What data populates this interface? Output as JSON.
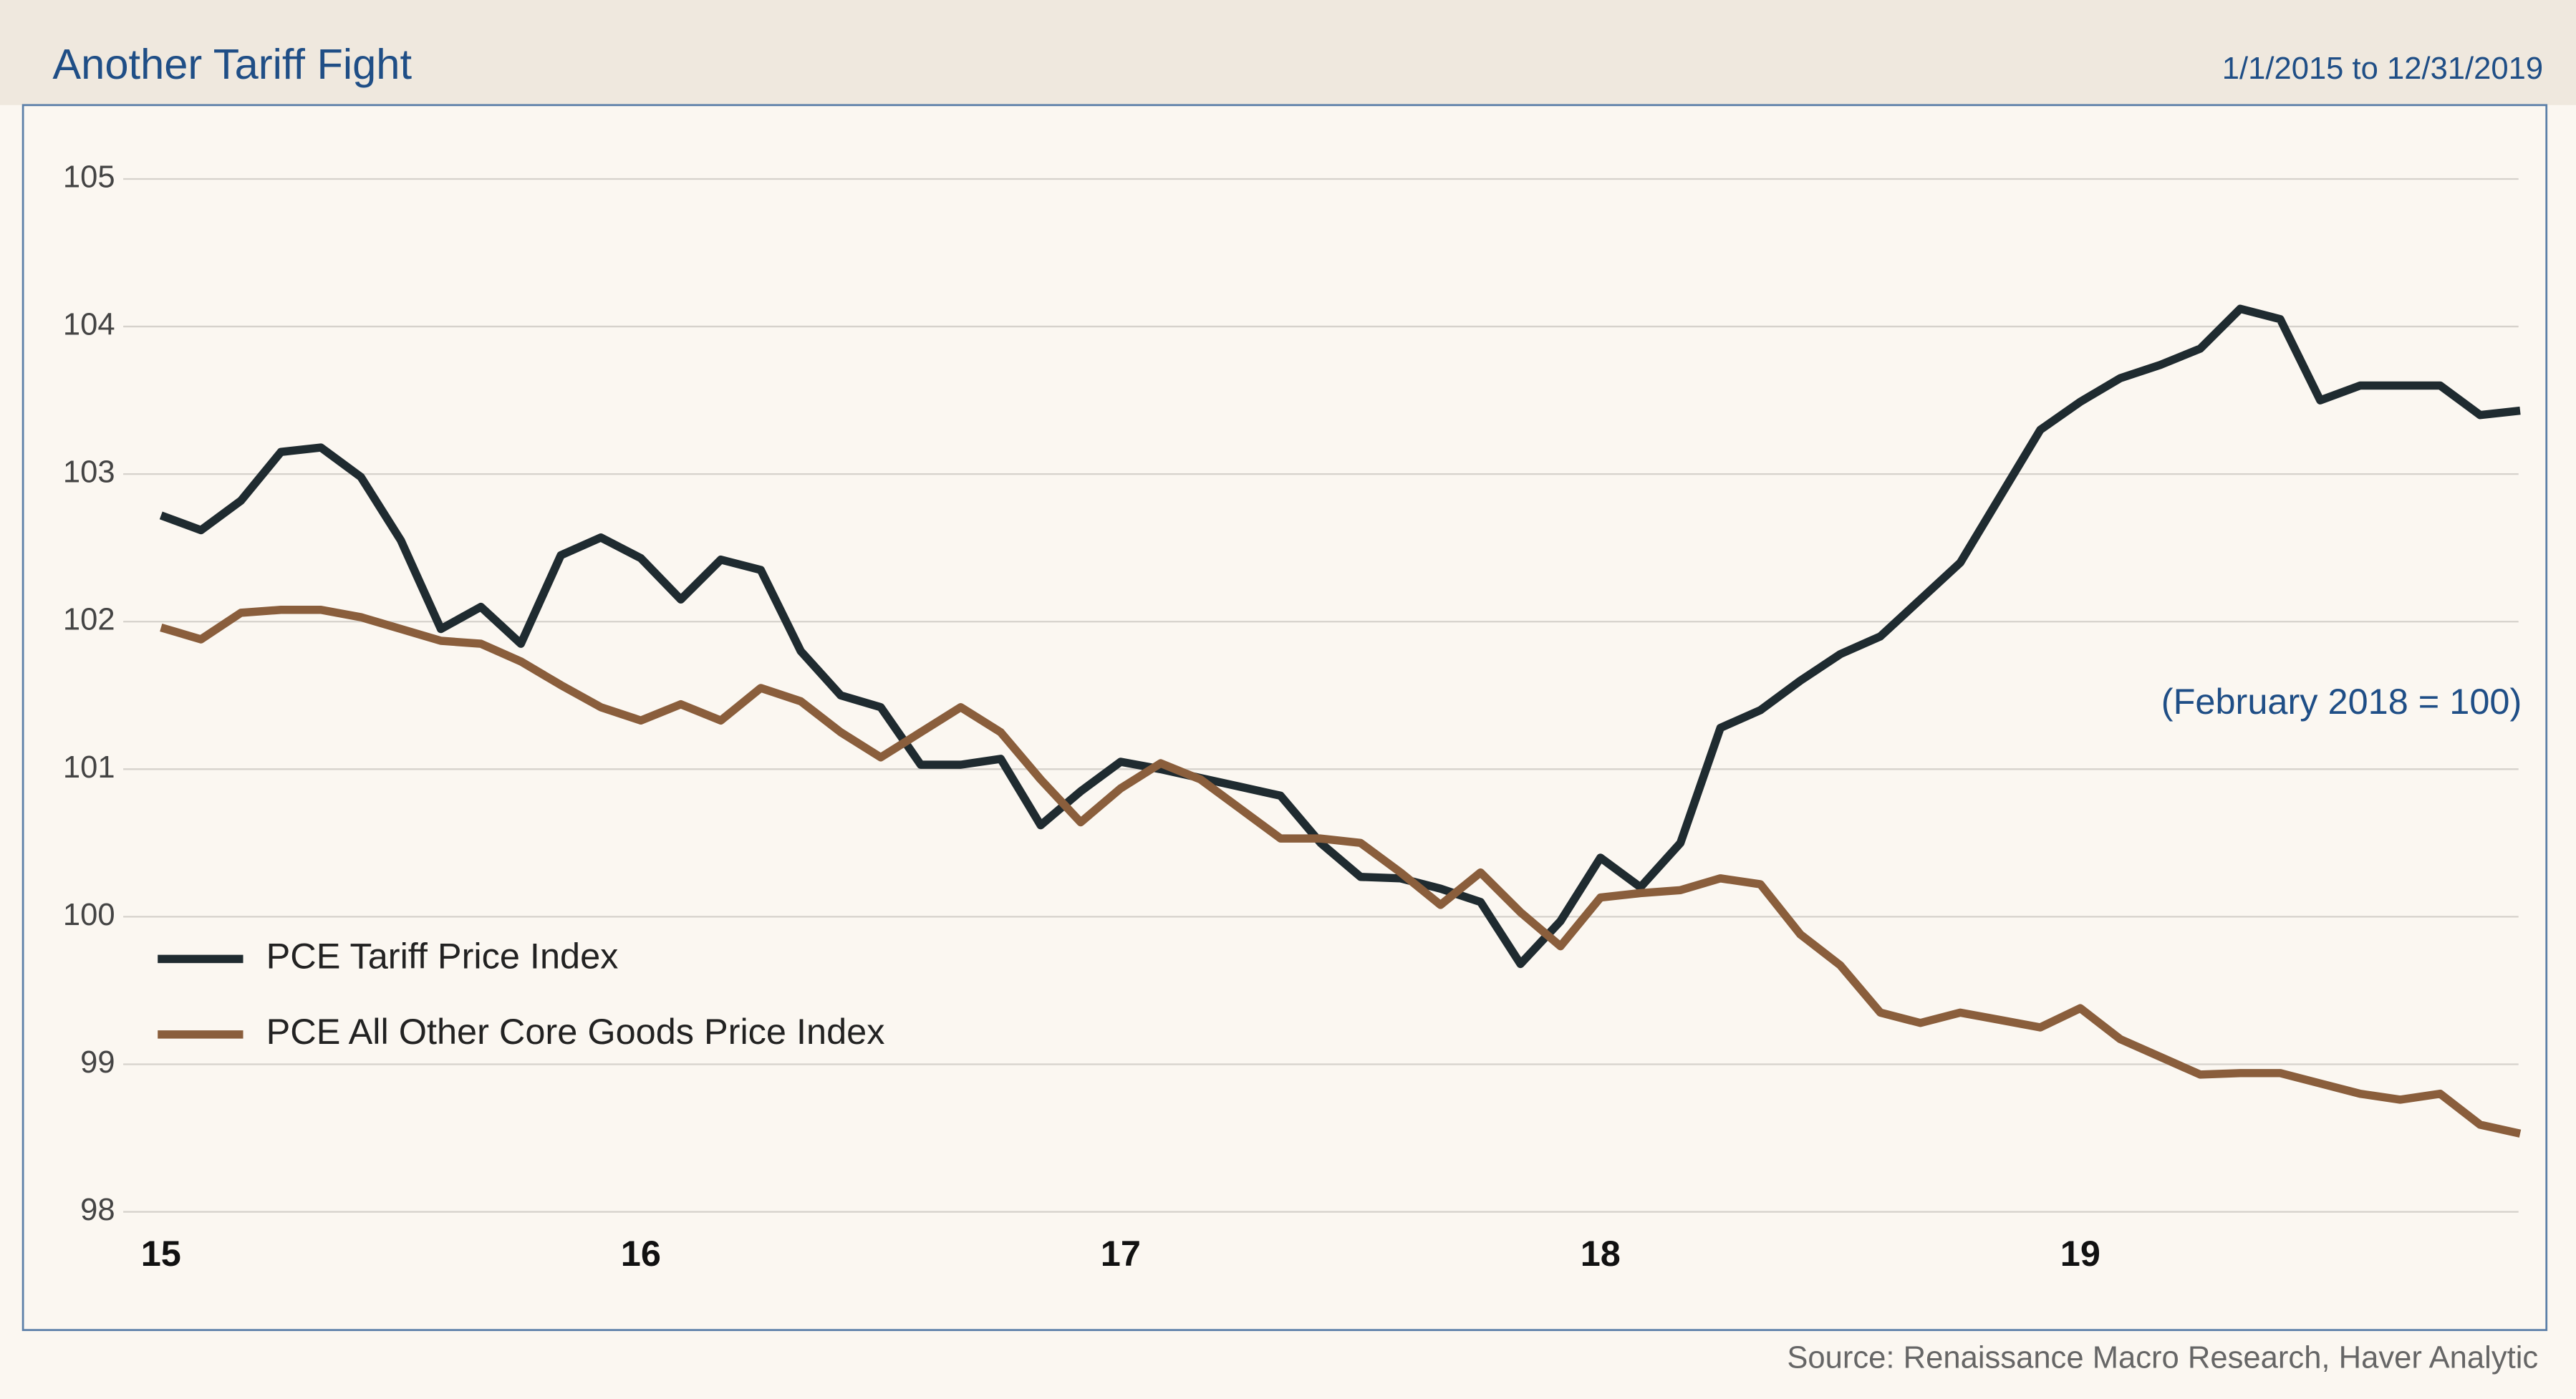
{
  "chart_data": {
    "type": "line",
    "title": "Another Tariff Fight",
    "subtitle": "1/1/2015 to 12/31/2019",
    "annotation": "(February 2018 = 100)",
    "source": "Source: Renaissance Macro Research, Haver Analytic",
    "categories": [
      "15",
      null,
      null,
      null,
      null,
      null,
      null,
      null,
      null,
      null,
      null,
      null,
      "16",
      null,
      null,
      null,
      null,
      null,
      null,
      null,
      null,
      null,
      null,
      null,
      "17",
      null,
      null,
      null,
      null,
      null,
      null,
      null,
      null,
      null,
      null,
      null,
      "18",
      null,
      null,
      null,
      null,
      null,
      null,
      null,
      null,
      null,
      null,
      null,
      "19",
      null,
      null,
      null,
      null,
      null,
      null,
      null,
      null,
      null,
      null,
      null
    ],
    "series": [
      {
        "name": "PCE Tariff Price Index",
        "color": "#1f2b30",
        "values": [
          102.72,
          102.62,
          102.82,
          103.15,
          103.18,
          102.98,
          102.55,
          101.95,
          102.1,
          101.85,
          102.45,
          102.57,
          102.43,
          102.15,
          102.42,
          102.35,
          101.8,
          101.5,
          101.42,
          101.03,
          101.03,
          101.07,
          100.62,
          100.85,
          101.05,
          101.0,
          100.94,
          100.88,
          100.82,
          100.5,
          100.27,
          100.26,
          100.19,
          100.1,
          99.68,
          99.97,
          100.4,
          100.2,
          100.5,
          101.28,
          101.4,
          101.6,
          101.78,
          101.9,
          102.15,
          102.4,
          102.85,
          103.3,
          103.49,
          103.65,
          103.74,
          103.85,
          104.12,
          104.05,
          103.5,
          103.6,
          103.6,
          103.6,
          103.4,
          103.43
        ]
      },
      {
        "name": "PCE All Other Core Goods Price Index",
        "color": "#8a5e3c",
        "values": [
          101.96,
          101.88,
          102.06,
          102.08,
          102.08,
          102.03,
          101.95,
          101.87,
          101.85,
          101.73,
          101.57,
          101.42,
          101.33,
          101.44,
          101.33,
          101.55,
          101.46,
          101.25,
          101.08,
          101.25,
          101.42,
          101.25,
          100.93,
          100.64,
          100.87,
          101.04,
          100.93,
          100.73,
          100.53,
          100.53,
          100.5,
          100.3,
          100.08,
          100.3,
          100.03,
          99.8,
          100.13,
          100.16,
          100.18,
          100.26,
          100.22,
          99.88,
          99.67,
          99.35,
          99.28,
          99.35,
          99.3,
          99.25,
          99.38,
          99.17,
          99.05,
          98.93,
          98.94,
          98.94,
          98.87,
          98.8,
          98.76,
          98.8,
          98.59,
          98.53
        ]
      }
    ],
    "ylim": [
      98,
      105
    ],
    "yticks": [
      98,
      99,
      100,
      101,
      102,
      103,
      104,
      105
    ],
    "grid": true,
    "legend": "lower left"
  }
}
